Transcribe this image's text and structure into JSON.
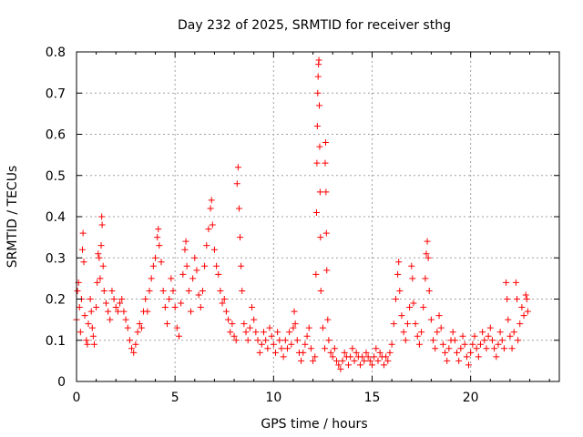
{
  "chart_data": {
    "type": "scatter",
    "title": "Day 232 of 2025, SRMTID for receiver sthg",
    "xlabel": "GPS time / hours",
    "ylabel": "SRMTID / TECUs",
    "xlim": [
      0,
      24.5
    ],
    "ylim": [
      0,
      0.8
    ],
    "x_ticks": [
      0,
      5,
      10,
      15,
      20
    ],
    "x_tick_labels": [
      "0",
      "5",
      "10",
      "15",
      "20"
    ],
    "y_ticks": [
      0,
      0.1,
      0.2,
      0.3,
      0.4,
      0.5,
      0.6,
      0.7,
      0.8
    ],
    "y_tick_labels": [
      "0",
      "0.1",
      "0.2",
      "0.3",
      "0.4",
      "0.5",
      "0.6",
      "0.7",
      "0.8"
    ],
    "grid": true,
    "marker": "+",
    "color": "#ff0000",
    "series": [
      {
        "name": "SRMTID",
        "points": [
          [
            0.0,
            0.15
          ],
          [
            0.05,
            0.22
          ],
          [
            0.1,
            0.24
          ],
          [
            0.15,
            0.18
          ],
          [
            0.2,
            0.12
          ],
          [
            0.25,
            0.2
          ],
          [
            0.3,
            0.32
          ],
          [
            0.33,
            0.36
          ],
          [
            0.37,
            0.29
          ],
          [
            0.42,
            0.16
          ],
          [
            0.5,
            0.1
          ],
          [
            0.55,
            0.09
          ],
          [
            0.6,
            0.14
          ],
          [
            0.7,
            0.2
          ],
          [
            0.75,
            0.17
          ],
          [
            0.8,
            0.13
          ],
          [
            0.85,
            0.11
          ],
          [
            0.9,
            0.09
          ],
          [
            1.0,
            0.18
          ],
          [
            1.05,
            0.24
          ],
          [
            1.1,
            0.31
          ],
          [
            1.15,
            0.3
          ],
          [
            1.2,
            0.25
          ],
          [
            1.25,
            0.33
          ],
          [
            1.28,
            0.4
          ],
          [
            1.3,
            0.38
          ],
          [
            1.35,
            0.28
          ],
          [
            1.4,
            0.22
          ],
          [
            1.5,
            0.19
          ],
          [
            1.6,
            0.17
          ],
          [
            1.7,
            0.15
          ],
          [
            1.8,
            0.22
          ],
          [
            1.9,
            0.2
          ],
          [
            2.0,
            0.18
          ],
          [
            2.1,
            0.17
          ],
          [
            2.2,
            0.19
          ],
          [
            2.3,
            0.2
          ],
          [
            2.4,
            0.17
          ],
          [
            2.5,
            0.15
          ],
          [
            2.6,
            0.13
          ],
          [
            2.7,
            0.1
          ],
          [
            2.8,
            0.08
          ],
          [
            2.9,
            0.07
          ],
          [
            3.0,
            0.09
          ],
          [
            3.1,
            0.12
          ],
          [
            3.2,
            0.14
          ],
          [
            3.3,
            0.13
          ],
          [
            3.4,
            0.17
          ],
          [
            3.5,
            0.2
          ],
          [
            3.6,
            0.17
          ],
          [
            3.7,
            0.22
          ],
          [
            3.8,
            0.25
          ],
          [
            3.9,
            0.28
          ],
          [
            4.0,
            0.3
          ],
          [
            4.1,
            0.35
          ],
          [
            4.15,
            0.37
          ],
          [
            4.2,
            0.33
          ],
          [
            4.3,
            0.29
          ],
          [
            4.4,
            0.22
          ],
          [
            4.5,
            0.18
          ],
          [
            4.6,
            0.14
          ],
          [
            4.7,
            0.2
          ],
          [
            4.8,
            0.25
          ],
          [
            4.9,
            0.22
          ],
          [
            5.0,
            0.18
          ],
          [
            5.1,
            0.13
          ],
          [
            5.2,
            0.11
          ],
          [
            5.3,
            0.19
          ],
          [
            5.4,
            0.26
          ],
          [
            5.5,
            0.32
          ],
          [
            5.55,
            0.34
          ],
          [
            5.6,
            0.28
          ],
          [
            5.7,
            0.22
          ],
          [
            5.8,
            0.17
          ],
          [
            5.9,
            0.25
          ],
          [
            6.0,
            0.3
          ],
          [
            6.1,
            0.27
          ],
          [
            6.2,
            0.21
          ],
          [
            6.3,
            0.18
          ],
          [
            6.4,
            0.22
          ],
          [
            6.5,
            0.28
          ],
          [
            6.6,
            0.33
          ],
          [
            6.7,
            0.37
          ],
          [
            6.8,
            0.42
          ],
          [
            6.85,
            0.44
          ],
          [
            6.9,
            0.38
          ],
          [
            7.0,
            0.32
          ],
          [
            7.1,
            0.28
          ],
          [
            7.2,
            0.26
          ],
          [
            7.3,
            0.22
          ],
          [
            7.4,
            0.19
          ],
          [
            7.5,
            0.2
          ],
          [
            7.6,
            0.17
          ],
          [
            7.7,
            0.15
          ],
          [
            7.8,
            0.12
          ],
          [
            7.9,
            0.14
          ],
          [
            8.0,
            0.11
          ],
          [
            8.1,
            0.1
          ],
          [
            8.15,
            0.48
          ],
          [
            8.2,
            0.52
          ],
          [
            8.25,
            0.42
          ],
          [
            8.3,
            0.35
          ],
          [
            8.35,
            0.28
          ],
          [
            8.4,
            0.22
          ],
          [
            8.5,
            0.14
          ],
          [
            8.6,
            0.12
          ],
          [
            8.7,
            0.1
          ],
          [
            8.8,
            0.13
          ],
          [
            8.9,
            0.18
          ],
          [
            9.0,
            0.15
          ],
          [
            9.1,
            0.12
          ],
          [
            9.2,
            0.1
          ],
          [
            9.3,
            0.07
          ],
          [
            9.4,
            0.09
          ],
          [
            9.5,
            0.12
          ],
          [
            9.6,
            0.1
          ],
          [
            9.7,
            0.08
          ],
          [
            9.8,
            0.13
          ],
          [
            9.9,
            0.11
          ],
          [
            10.0,
            0.09
          ],
          [
            10.1,
            0.07
          ],
          [
            10.2,
            0.12
          ],
          [
            10.3,
            0.1
          ],
          [
            10.4,
            0.08
          ],
          [
            10.5,
            0.06
          ],
          [
            10.6,
            0.1
          ],
          [
            10.7,
            0.08
          ],
          [
            10.8,
            0.12
          ],
          [
            10.9,
            0.09
          ],
          [
            11.0,
            0.13
          ],
          [
            11.05,
            0.17
          ],
          [
            11.1,
            0.14
          ],
          [
            11.2,
            0.1
          ],
          [
            11.3,
            0.07
          ],
          [
            11.4,
            0.05
          ],
          [
            11.5,
            0.07
          ],
          [
            11.6,
            0.09
          ],
          [
            11.7,
            0.11
          ],
          [
            11.8,
            0.13
          ],
          [
            11.9,
            0.08
          ],
          [
            12.0,
            0.05
          ],
          [
            12.1,
            0.06
          ],
          [
            12.15,
            0.26
          ],
          [
            12.18,
            0.41
          ],
          [
            12.2,
            0.53
          ],
          [
            12.22,
            0.62
          ],
          [
            12.24,
            0.7
          ],
          [
            12.26,
            0.74
          ],
          [
            12.28,
            0.77
          ],
          [
            12.3,
            0.78
          ],
          [
            12.32,
            0.67
          ],
          [
            12.34,
            0.57
          ],
          [
            12.36,
            0.46
          ],
          [
            12.38,
            0.35
          ],
          [
            12.4,
            0.22
          ],
          [
            12.5,
            0.13
          ],
          [
            12.6,
            0.08
          ],
          [
            12.62,
            0.53
          ],
          [
            12.64,
            0.58
          ],
          [
            12.66,
            0.46
          ],
          [
            12.68,
            0.36
          ],
          [
            12.7,
            0.27
          ],
          [
            12.75,
            0.15
          ],
          [
            12.8,
            0.1
          ],
          [
            12.9,
            0.07
          ],
          [
            13.0,
            0.06
          ],
          [
            13.1,
            0.08
          ],
          [
            13.2,
            0.05
          ],
          [
            13.3,
            0.04
          ],
          [
            13.4,
            0.03
          ],
          [
            13.5,
            0.05
          ],
          [
            13.6,
            0.07
          ],
          [
            13.7,
            0.06
          ],
          [
            13.8,
            0.04
          ],
          [
            13.9,
            0.06
          ],
          [
            14.0,
            0.08
          ],
          [
            14.1,
            0.05
          ],
          [
            14.2,
            0.07
          ],
          [
            14.3,
            0.06
          ],
          [
            14.4,
            0.04
          ],
          [
            14.5,
            0.06
          ],
          [
            14.6,
            0.05
          ],
          [
            14.7,
            0.07
          ],
          [
            14.8,
            0.06
          ],
          [
            14.9,
            0.05
          ],
          [
            15.0,
            0.04
          ],
          [
            15.1,
            0.06
          ],
          [
            15.2,
            0.08
          ],
          [
            15.3,
            0.05
          ],
          [
            15.4,
            0.07
          ],
          [
            15.5,
            0.06
          ],
          [
            15.6,
            0.04
          ],
          [
            15.7,
            0.06
          ],
          [
            15.8,
            0.05
          ],
          [
            15.9,
            0.07
          ],
          [
            16.0,
            0.09
          ],
          [
            16.1,
            0.14
          ],
          [
            16.2,
            0.2
          ],
          [
            16.3,
            0.26
          ],
          [
            16.35,
            0.29
          ],
          [
            16.4,
            0.22
          ],
          [
            16.5,
            0.16
          ],
          [
            16.6,
            0.12
          ],
          [
            16.7,
            0.1
          ],
          [
            16.8,
            0.14
          ],
          [
            16.9,
            0.18
          ],
          [
            17.0,
            0.28
          ],
          [
            17.05,
            0.25
          ],
          [
            17.1,
            0.19
          ],
          [
            17.2,
            0.14
          ],
          [
            17.3,
            0.11
          ],
          [
            17.4,
            0.09
          ],
          [
            17.5,
            0.12
          ],
          [
            17.6,
            0.18
          ],
          [
            17.7,
            0.25
          ],
          [
            17.75,
            0.31
          ],
          [
            17.8,
            0.34
          ],
          [
            17.85,
            0.3
          ],
          [
            17.9,
            0.22
          ],
          [
            18.0,
            0.15
          ],
          [
            18.1,
            0.1
          ],
          [
            18.2,
            0.08
          ],
          [
            18.3,
            0.12
          ],
          [
            18.4,
            0.16
          ],
          [
            18.5,
            0.13
          ],
          [
            18.6,
            0.09
          ],
          [
            18.7,
            0.07
          ],
          [
            18.8,
            0.05
          ],
          [
            18.9,
            0.08
          ],
          [
            19.0,
            0.1
          ],
          [
            19.1,
            0.12
          ],
          [
            19.2,
            0.1
          ],
          [
            19.3,
            0.07
          ],
          [
            19.4,
            0.05
          ],
          [
            19.5,
            0.08
          ],
          [
            19.6,
            0.11
          ],
          [
            19.7,
            0.09
          ],
          [
            19.8,
            0.06
          ],
          [
            19.9,
            0.04
          ],
          [
            20.0,
            0.07
          ],
          [
            20.1,
            0.09
          ],
          [
            20.2,
            0.11
          ],
          [
            20.3,
            0.08
          ],
          [
            20.4,
            0.06
          ],
          [
            20.5,
            0.09
          ],
          [
            20.6,
            0.12
          ],
          [
            20.7,
            0.1
          ],
          [
            20.8,
            0.08
          ],
          [
            20.9,
            0.11
          ],
          [
            21.0,
            0.13
          ],
          [
            21.1,
            0.1
          ],
          [
            21.2,
            0.08
          ],
          [
            21.3,
            0.06
          ],
          [
            21.4,
            0.09
          ],
          [
            21.5,
            0.12
          ],
          [
            21.6,
            0.1
          ],
          [
            21.7,
            0.08
          ],
          [
            21.8,
            0.24
          ],
          [
            21.85,
            0.2
          ],
          [
            21.9,
            0.15
          ],
          [
            22.0,
            0.11
          ],
          [
            22.1,
            0.08
          ],
          [
            22.2,
            0.12
          ],
          [
            22.3,
            0.24
          ],
          [
            22.35,
            0.2
          ],
          [
            22.4,
            0.1
          ],
          [
            22.5,
            0.14
          ],
          [
            22.6,
            0.18
          ],
          [
            22.7,
            0.16
          ],
          [
            22.8,
            0.21
          ],
          [
            22.85,
            0.2
          ],
          [
            22.9,
            0.17
          ]
        ]
      }
    ]
  }
}
